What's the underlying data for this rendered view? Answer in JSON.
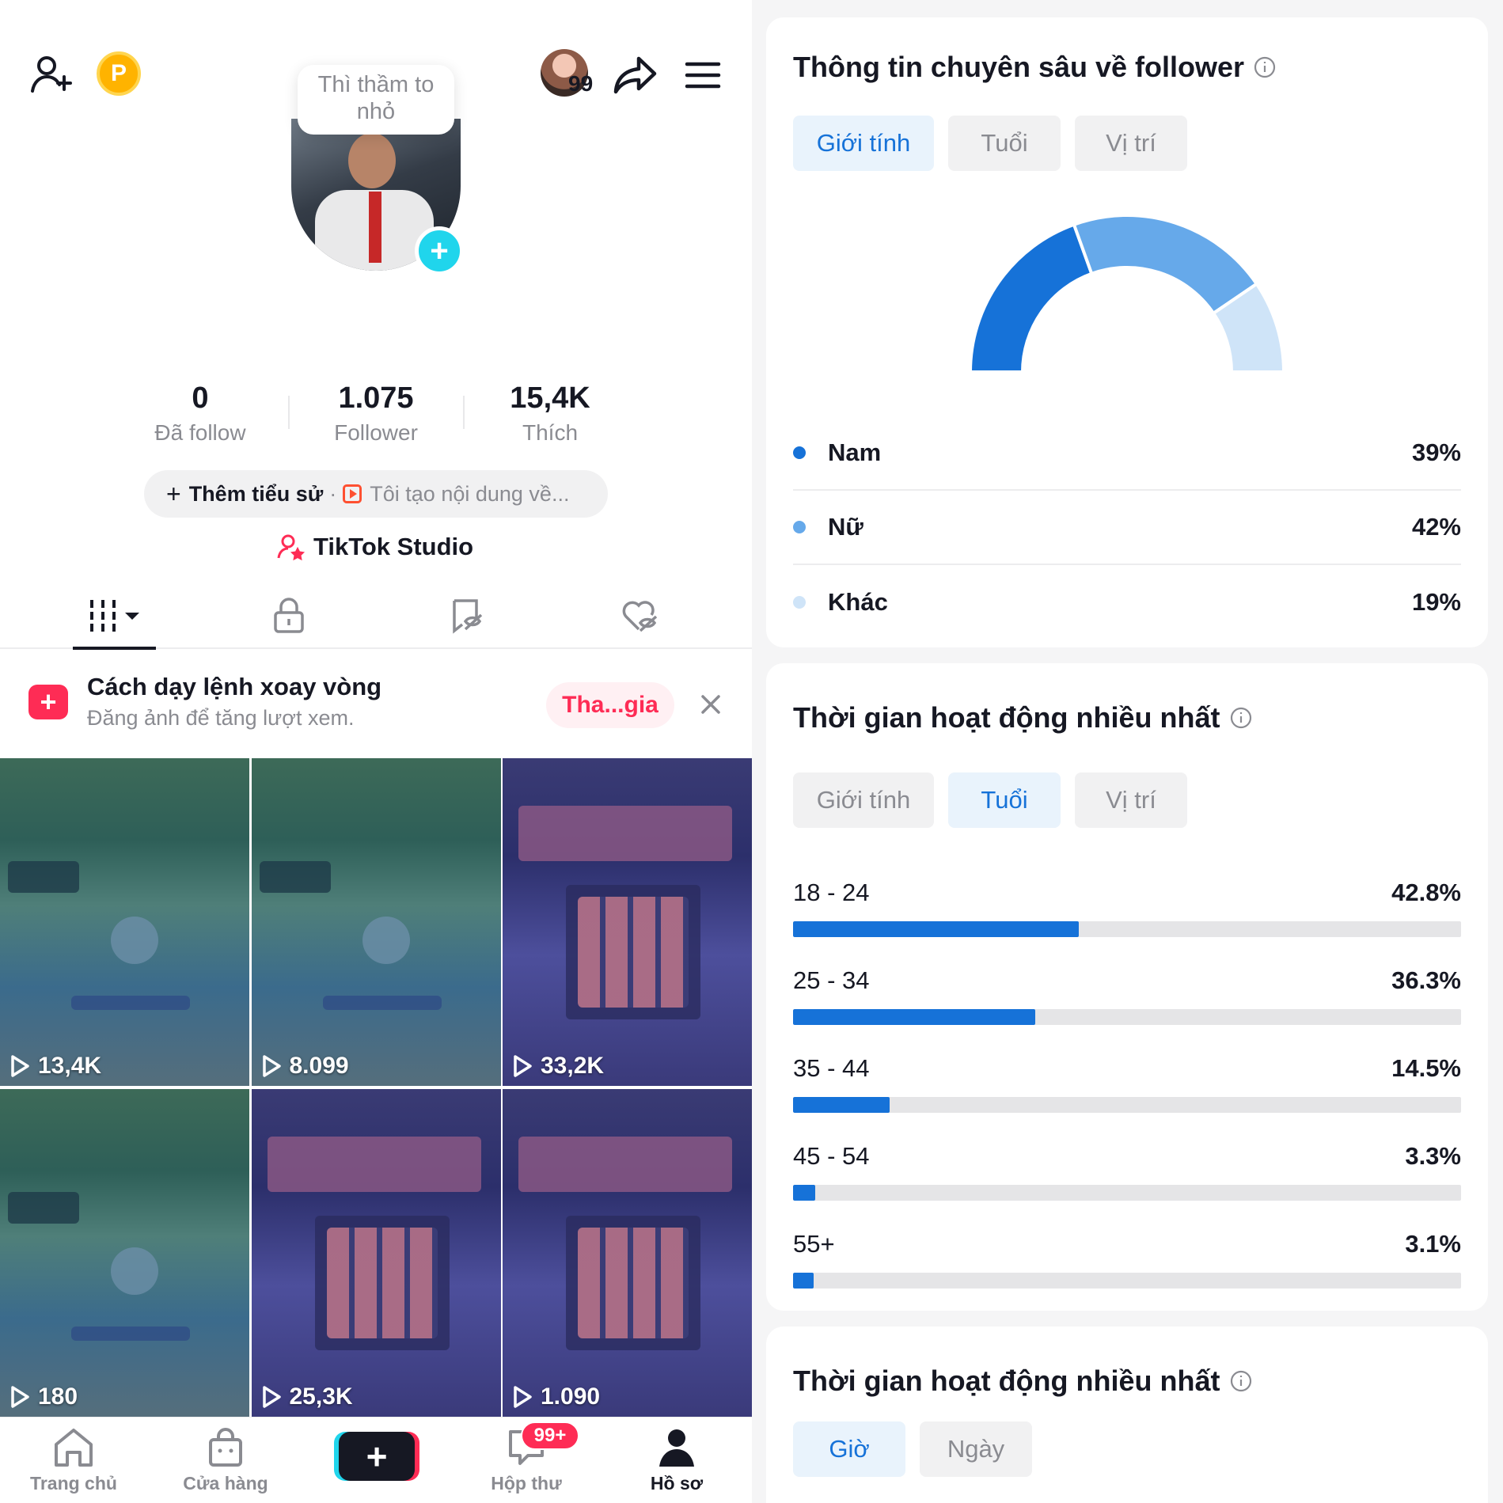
{
  "profile": {
    "note_bubble": "Thì thầm to nhỏ",
    "story_count": "99",
    "coin_letter": "P",
    "stats": [
      {
        "value": "0",
        "label": "Đã follow"
      },
      {
        "value": "1.075",
        "label": "Follower"
      },
      {
        "value": "15,4K",
        "label": "Thích"
      }
    ],
    "bio_add": "Thêm tiểu sử",
    "bio_separator": "·",
    "bio_desc": "Tôi tạo nội dung về...",
    "studio_label": "TikTok Studio"
  },
  "banner": {
    "title": "Cách dạy lệnh xoay vòng",
    "subtitle": "Đăng ảnh để tăng lượt xem.",
    "button": "Tha...gia"
  },
  "videos": [
    {
      "views": "13,4K",
      "theme": "green"
    },
    {
      "views": "8.099",
      "theme": "green"
    },
    {
      "views": "33,2K",
      "theme": "purple"
    },
    {
      "views": "180",
      "theme": "green"
    },
    {
      "views": "25,3K",
      "theme": "purple"
    },
    {
      "views": "1.090",
      "theme": "purple"
    }
  ],
  "nav": {
    "home": "Trang chủ",
    "shop": "Cửa hàng",
    "inbox": "Hộp thư",
    "inbox_badge": "99+",
    "profile": "Hồ sơ"
  },
  "gender_card": {
    "title": "Thông tin chuyên sâu về follower",
    "tabs": [
      "Giới tính",
      "Tuổi",
      "Vị trí"
    ],
    "active_tab": 0,
    "segments": [
      {
        "name": "Nam",
        "pct_label": "39%",
        "value": 39,
        "color": "#1672d8"
      },
      {
        "name": "Nữ",
        "pct_label": "42%",
        "value": 42,
        "color": "#66a9ea"
      },
      {
        "name": "Khác",
        "pct_label": "19%",
        "value": 19,
        "color": "#cfe4f8"
      }
    ]
  },
  "age_card": {
    "title": "Thời gian hoạt động nhiều nhất",
    "tabs": [
      "Giới tính",
      "Tuổi",
      "Vị trí"
    ],
    "active_tab": 1,
    "rows": [
      {
        "label": "18 - 24",
        "pct_label": "42.8%",
        "value": 42.8
      },
      {
        "label": "25 - 34",
        "pct_label": "36.3%",
        "value": 36.3
      },
      {
        "label": "35 - 44",
        "pct_label": "14.5%",
        "value": 14.5
      },
      {
        "label": "45 - 54",
        "pct_label": "3.3%",
        "value": 3.3
      },
      {
        "label": "55+",
        "pct_label": "3.1%",
        "value": 3.1
      }
    ]
  },
  "time_card": {
    "title": "Thời gian hoạt động nhiều nhất",
    "tabs": [
      "Giờ",
      "Ngày"
    ],
    "active_tab": 0
  }
}
